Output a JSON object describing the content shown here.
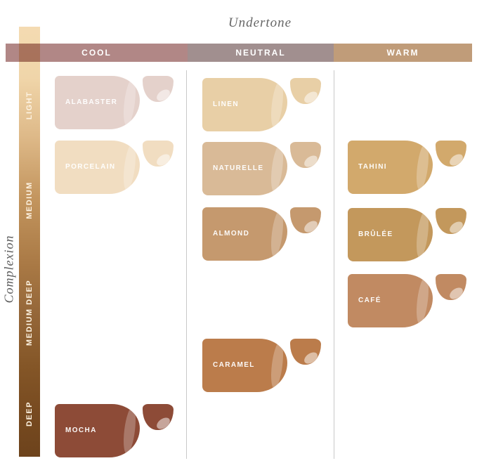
{
  "title": "Undertone",
  "side_title": "Complexion",
  "colors": {
    "bar_gradient": "linear-gradient(180deg,#f4dbb2 0%,#f0d5a9 12%,#ddb887 26%,#c3955e 40%,#a87844 56%,#96683a 66%,#845627 79%,#774a20 90%,#6d431c 100%)",
    "divider": "#c9c9c9",
    "title_text": "#666666"
  },
  "undertones": [
    {
      "label": "COOL",
      "color": "#b18786"
    },
    {
      "label": "NEUTRAL",
      "color": "#a18f8f"
    },
    {
      "label": "WARM",
      "color": "#c09c79"
    }
  ],
  "complexions": [
    {
      "label": "LIGHT"
    },
    {
      "label": "MEDIUM"
    },
    {
      "label": "MEDIUM DEEP"
    },
    {
      "label": "DEEP"
    }
  ],
  "swatches": [
    {
      "name": "ALABASTER",
      "color": "#e4d1cb"
    },
    {
      "name": "PORCELAIN",
      "color": "#f1ddc1"
    },
    {
      "name": "MOCHA",
      "color": "#8d4b37"
    },
    {
      "name": "LINEN",
      "color": "#e8cfa6"
    },
    {
      "name": "NATURELLE",
      "color": "#d9ba97"
    },
    {
      "name": "ALMOND",
      "color": "#c5996e"
    },
    {
      "name": "CARAMEL",
      "color": "#bb7c4b"
    },
    {
      "name": "TAHINI",
      "color": "#d2a96c"
    },
    {
      "name": "BRÛLÉE",
      "color": "#c3985c"
    },
    {
      "name": "CAFÉ",
      "color": "#c18a62"
    }
  ],
  "chart_data": {
    "type": "table",
    "title": "Foundation shade matrix",
    "x_dimension": "Undertone",
    "y_dimension": "Complexion",
    "columns": [
      "COOL",
      "NEUTRAL",
      "WARM"
    ],
    "rows": [
      "LIGHT",
      "MEDIUM",
      "MEDIUM DEEP",
      "DEEP"
    ],
    "cells": [
      {
        "complexion": "LIGHT",
        "undertone": "COOL",
        "shade": "ALABASTER",
        "color": "#e4d1cb"
      },
      {
        "complexion": "LIGHT",
        "undertone": "NEUTRAL",
        "shade": "LINEN",
        "color": "#e8cfa6"
      },
      {
        "complexion": "MEDIUM",
        "undertone": "COOL",
        "shade": "PORCELAIN",
        "color": "#f1ddc1"
      },
      {
        "complexion": "MEDIUM",
        "undertone": "NEUTRAL",
        "shade": "NATURELLE",
        "color": "#d9ba97"
      },
      {
        "complexion": "MEDIUM",
        "undertone": "WARM",
        "shade": "TAHINI",
        "color": "#d2a96c"
      },
      {
        "complexion": "MEDIUM",
        "undertone": "NEUTRAL",
        "shade": "ALMOND",
        "color": "#c5996e"
      },
      {
        "complexion": "MEDIUM",
        "undertone": "WARM",
        "shade": "BRÛLÉE",
        "color": "#c3985c"
      },
      {
        "complexion": "MEDIUM DEEP",
        "undertone": "WARM",
        "shade": "CAFÉ",
        "color": "#c18a62"
      },
      {
        "complexion": "MEDIUM DEEP",
        "undertone": "NEUTRAL",
        "shade": "CARAMEL",
        "color": "#bb7c4b"
      },
      {
        "complexion": "DEEP",
        "undertone": "COOL",
        "shade": "MOCHA",
        "color": "#8d4b37"
      }
    ]
  }
}
